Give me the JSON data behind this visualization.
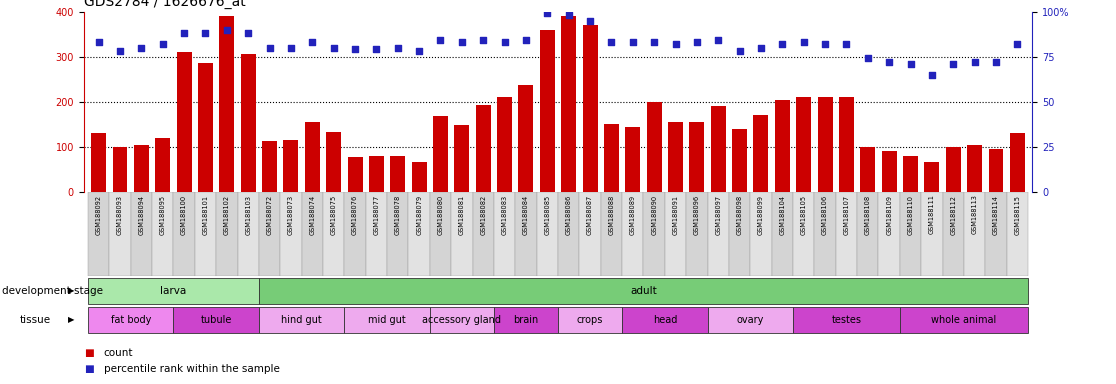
{
  "title": "GDS2784 / 1626676_at",
  "samples": [
    "GSM188092",
    "GSM188093",
    "GSM188094",
    "GSM188095",
    "GSM188100",
    "GSM188101",
    "GSM188102",
    "GSM188103",
    "GSM188072",
    "GSM188073",
    "GSM188074",
    "GSM188075",
    "GSM188076",
    "GSM188077",
    "GSM188078",
    "GSM188079",
    "GSM188080",
    "GSM188081",
    "GSM188082",
    "GSM188083",
    "GSM188084",
    "GSM188085",
    "GSM188086",
    "GSM188087",
    "GSM188088",
    "GSM188089",
    "GSM188090",
    "GSM188091",
    "GSM188096",
    "GSM188097",
    "GSM188098",
    "GSM188099",
    "GSM188104",
    "GSM188105",
    "GSM188106",
    "GSM188107",
    "GSM188108",
    "GSM188109",
    "GSM188110",
    "GSM188111",
    "GSM188112",
    "GSM188113",
    "GSM188114",
    "GSM188115"
  ],
  "counts": [
    130,
    100,
    105,
    120,
    310,
    285,
    390,
    305,
    112,
    115,
    155,
    133,
    78,
    80,
    80,
    66,
    168,
    148,
    193,
    210,
    238,
    360,
    390,
    370,
    150,
    145,
    200,
    155,
    155,
    190,
    140,
    170,
    205,
    210,
    210,
    210,
    100,
    90,
    80,
    66,
    100,
    105,
    95,
    130
  ],
  "percentiles": [
    83,
    78,
    80,
    82,
    88,
    88,
    90,
    88,
    80,
    80,
    83,
    80,
    79,
    79,
    80,
    78,
    84,
    83,
    84,
    83,
    84,
    99,
    98,
    95,
    83,
    83,
    83,
    82,
    83,
    84,
    78,
    80,
    82,
    83,
    82,
    82,
    74,
    72,
    71,
    65,
    71,
    72,
    72,
    82
  ],
  "ylim_left": [
    0,
    400
  ],
  "ylim_right": [
    0,
    100
  ],
  "yticks_left": [
    0,
    100,
    200,
    300,
    400
  ],
  "yticks_right": [
    0,
    25,
    50,
    75,
    100
  ],
  "bar_color": "#cc0000",
  "dot_color": "#2222bb",
  "grid_color": "#888888",
  "bg_color": "#ffffff",
  "development_stages": [
    {
      "label": "larva",
      "start": 0,
      "end": 7,
      "color": "#aae8aa"
    },
    {
      "label": "adult",
      "start": 8,
      "end": 43,
      "color": "#77cc77"
    }
  ],
  "tissues": [
    {
      "label": "fat body",
      "start": 0,
      "end": 3,
      "color": "#ee88ee"
    },
    {
      "label": "tubule",
      "start": 4,
      "end": 7,
      "color": "#cc44cc"
    },
    {
      "label": "hind gut",
      "start": 8,
      "end": 11,
      "color": "#eeaaee"
    },
    {
      "label": "mid gut",
      "start": 12,
      "end": 15,
      "color": "#eeaaee"
    },
    {
      "label": "accessory gland",
      "start": 16,
      "end": 18,
      "color": "#eeaaee"
    },
    {
      "label": "brain",
      "start": 19,
      "end": 21,
      "color": "#cc44cc"
    },
    {
      "label": "crops",
      "start": 22,
      "end": 24,
      "color": "#eeaaee"
    },
    {
      "label": "head",
      "start": 25,
      "end": 28,
      "color": "#cc44cc"
    },
    {
      "label": "ovary",
      "start": 29,
      "end": 32,
      "color": "#eeaaee"
    },
    {
      "label": "testes",
      "start": 33,
      "end": 37,
      "color": "#cc44cc"
    },
    {
      "label": "whole animal",
      "start": 38,
      "end": 43,
      "color": "#cc44cc"
    }
  ],
  "title_fontsize": 10,
  "label_fontsize": 7.5,
  "tick_fontsize": 7,
  "legend_fontsize": 7.5
}
